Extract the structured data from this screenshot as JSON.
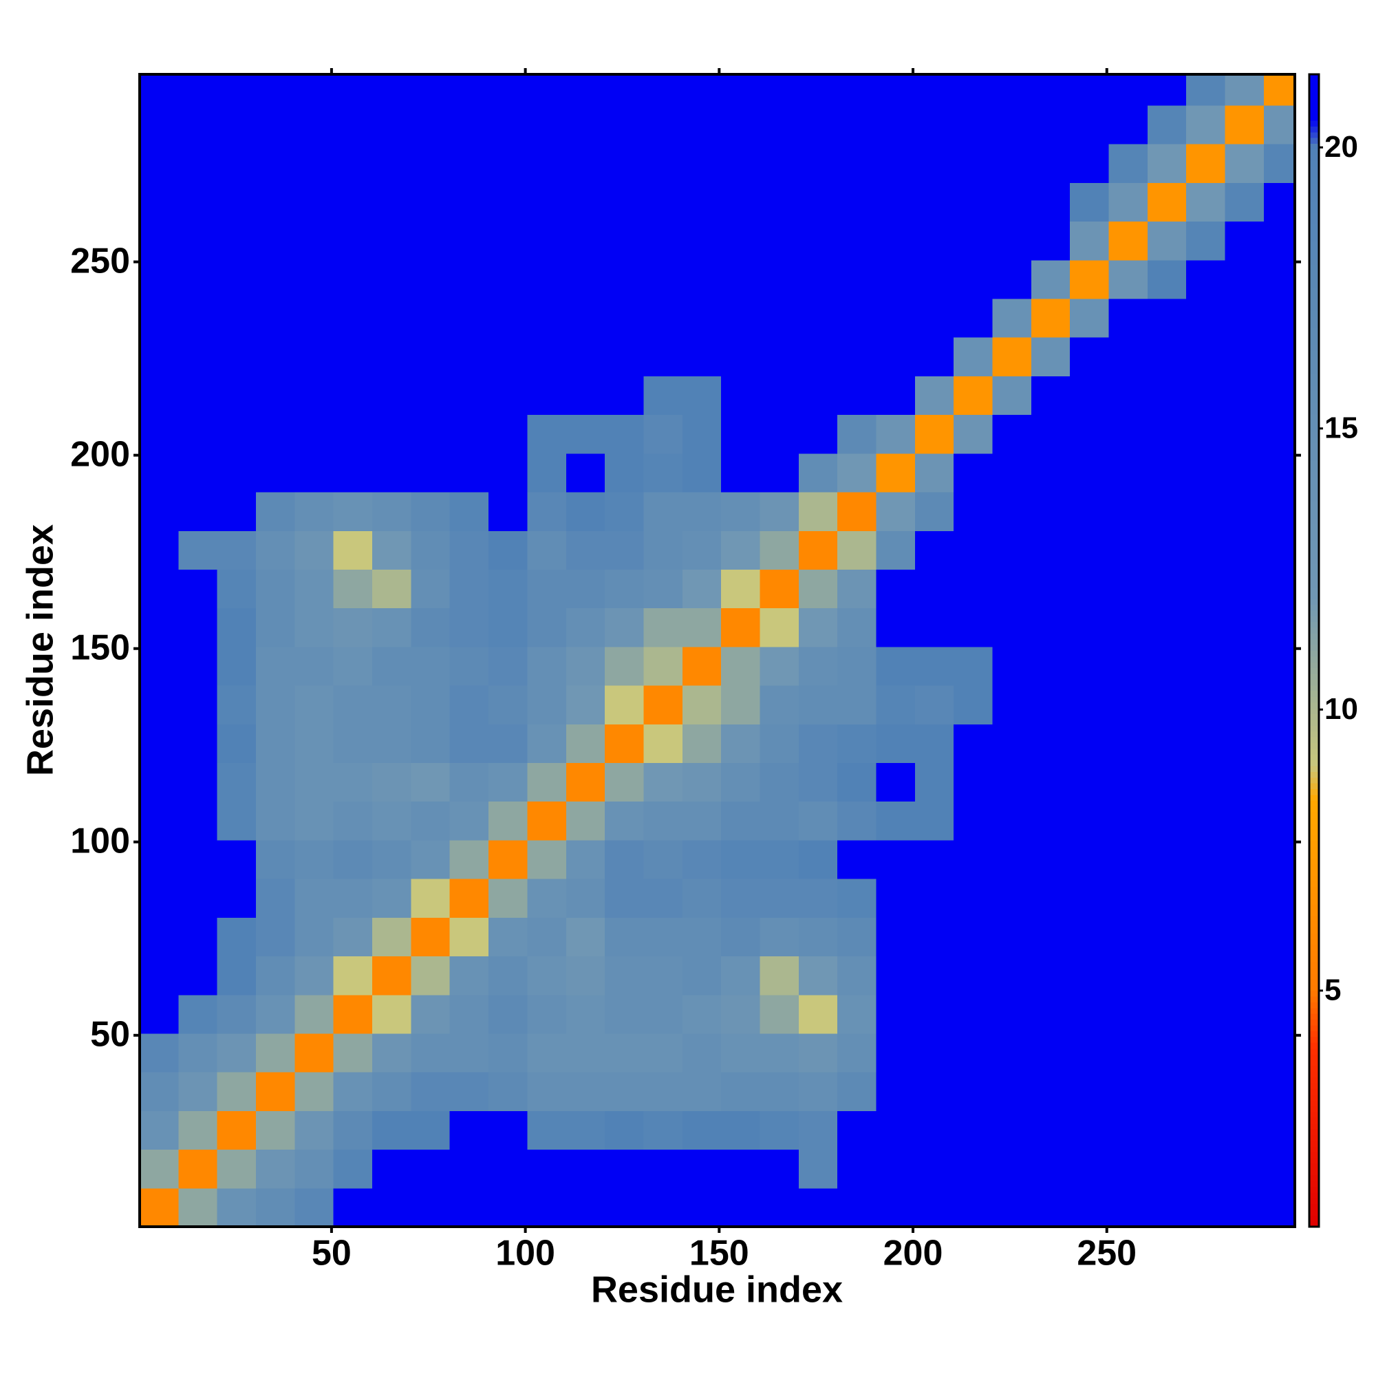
{
  "chart_data": {
    "type": "heatmap",
    "xlabel": "Residue index",
    "ylabel": "Residue index",
    "xlim": [
      0.5,
      298.5
    ],
    "ylim": [
      0.5,
      298.5
    ],
    "xticks": [
      50,
      100,
      150,
      200,
      250
    ],
    "yticks": [
      50,
      100,
      150,
      200,
      250
    ],
    "xbins": [
      0.5,
      10.5,
      20.5,
      30.5,
      40.5,
      50.5,
      60.5,
      70.5,
      80.5,
      90.5,
      100.5,
      110.5,
      120.5,
      130.5,
      140.5,
      150.5,
      160.5,
      170.5,
      180.5,
      190.5,
      200.5,
      210.5,
      220.5,
      230.5,
      240.5,
      250.5,
      260.5,
      270.5,
      280.5,
      290.5,
      298.5
    ],
    "ybins": [
      0.5,
      10.5,
      20.5,
      30.5,
      40.5,
      50.5,
      60.5,
      70.5,
      80.5,
      90.5,
      100.5,
      110.5,
      120.5,
      130.5,
      140.5,
      150.5,
      160.5,
      170.5,
      180.5,
      190.5,
      200.5,
      210.5,
      220.5,
      230.5,
      240.5,
      250.5,
      260.5,
      270.5,
      280.5,
      290.5,
      298.5
    ],
    "colorbar": {
      "lim": [
        0.8,
        21.3
      ],
      "ticks": [
        5,
        10,
        15,
        20
      ],
      "stops": [
        {
          "value": 0.8,
          "color": "#e00000"
        },
        {
          "value": 4,
          "color": "#ff3000"
        },
        {
          "value": 5,
          "color": "#ff7a00"
        },
        {
          "value": 8.4,
          "color": "#ffa800"
        },
        {
          "value": 9,
          "color": "#c9c77c"
        },
        {
          "value": 12,
          "color": "#7097b4"
        },
        {
          "value": 20,
          "color": "#5182b6"
        },
        {
          "value": 20.5,
          "color": "#0000f5"
        },
        {
          "value": 21.3,
          "color": "#0000f5"
        }
      ]
    },
    "z": [
      [
        6,
        11,
        14,
        16,
        18,
        21,
        21,
        21,
        21,
        21,
        21,
        21,
        21,
        21,
        21,
        21,
        21,
        21,
        21,
        21,
        21,
        21,
        21,
        21,
        21,
        21,
        21,
        21,
        21,
        21
      ],
      [
        11,
        6,
        11,
        13,
        15,
        19,
        21,
        21,
        21,
        21,
        21,
        21,
        21,
        21,
        21,
        21,
        21,
        18,
        21,
        21,
        21,
        21,
        21,
        21,
        21,
        21,
        21,
        21,
        21,
        21
      ],
      [
        14,
        11,
        6,
        11,
        13,
        17,
        20,
        20,
        21,
        21,
        19,
        19,
        20,
        19,
        20,
        20,
        19,
        18,
        21,
        21,
        21,
        21,
        21,
        21,
        21,
        21,
        21,
        21,
        21,
        21
      ],
      [
        16,
        13,
        11,
        6,
        11,
        14,
        16,
        18,
        18,
        17,
        15,
        15,
        15,
        15,
        15,
        16,
        16,
        15,
        17,
        21,
        21,
        21,
        21,
        21,
        21,
        21,
        21,
        21,
        21,
        21
      ],
      [
        18,
        15,
        13,
        11,
        6,
        11,
        13,
        15,
        15,
        16,
        14,
        14,
        14,
        14,
        15,
        14,
        14,
        13,
        15,
        21,
        21,
        21,
        21,
        21,
        21,
        21,
        21,
        21,
        21,
        21
      ],
      [
        21,
        19,
        17,
        14,
        11,
        6,
        9,
        13,
        15,
        17,
        15,
        14,
        15,
        15,
        14,
        13,
        11,
        9,
        14,
        21,
        21,
        21,
        21,
        21,
        21,
        21,
        21,
        21,
        21,
        21
      ],
      [
        21,
        21,
        20,
        16,
        13,
        9,
        6,
        10,
        14,
        16,
        14,
        13,
        15,
        15,
        16,
        14,
        10,
        12,
        15,
        21,
        21,
        21,
        21,
        21,
        21,
        21,
        21,
        21,
        21,
        21
      ],
      [
        21,
        21,
        20,
        18,
        15,
        13,
        10,
        6,
        9,
        14,
        15,
        12,
        16,
        16,
        16,
        17,
        15,
        16,
        17,
        21,
        21,
        21,
        21,
        21,
        21,
        21,
        21,
        21,
        21,
        21
      ],
      [
        21,
        21,
        21,
        18,
        15,
        15,
        14,
        9,
        6,
        11,
        14,
        15,
        18,
        18,
        17,
        18,
        18,
        18,
        19,
        21,
        21,
        21,
        21,
        21,
        21,
        21,
        21,
        21,
        21,
        21
      ],
      [
        21,
        21,
        21,
        17,
        16,
        17,
        16,
        14,
        11,
        6,
        11,
        14,
        18,
        17,
        18,
        19,
        19,
        20,
        21,
        21,
        21,
        21,
        21,
        21,
        21,
        21,
        21,
        21,
        21,
        21
      ],
      [
        21,
        21,
        19,
        15,
        14,
        15,
        14,
        15,
        14,
        11,
        6,
        11,
        14,
        15,
        15,
        17,
        17,
        16,
        18,
        20,
        20,
        21,
        21,
        21,
        21,
        21,
        21,
        21,
        21,
        21
      ],
      [
        21,
        21,
        19,
        15,
        14,
        14,
        13,
        12,
        15,
        14,
        11,
        6,
        11,
        12,
        13,
        15,
        17,
        18,
        20,
        21,
        20,
        21,
        21,
        21,
        21,
        21,
        21,
        21,
        21,
        21
      ],
      [
        21,
        21,
        20,
        15,
        14,
        15,
        15,
        16,
        18,
        18,
        14,
        11,
        6,
        9,
        11,
        13,
        16,
        18,
        19,
        20,
        20,
        21,
        21,
        21,
        21,
        21,
        21,
        21,
        21,
        21
      ],
      [
        21,
        21,
        19,
        15,
        14,
        15,
        15,
        16,
        18,
        17,
        15,
        12,
        9,
        6,
        10,
        11,
        15,
        16,
        16,
        19,
        18,
        20,
        21,
        21,
        21,
        21,
        21,
        21,
        21,
        21
      ],
      [
        21,
        21,
        20,
        15,
        15,
        14,
        16,
        16,
        17,
        18,
        15,
        13,
        11,
        10,
        6,
        11,
        12,
        15,
        16,
        20,
        20,
        20,
        21,
        21,
        21,
        21,
        21,
        21,
        21,
        21
      ],
      [
        21,
        21,
        20,
        16,
        14,
        13,
        14,
        17,
        18,
        19,
        17,
        15,
        13,
        11,
        11,
        6,
        9,
        12,
        15,
        21,
        21,
        21,
        21,
        21,
        21,
        21,
        21,
        21,
        21,
        21
      ],
      [
        21,
        21,
        19,
        16,
        14,
        11,
        10,
        15,
        18,
        19,
        17,
        17,
        16,
        15,
        12,
        9,
        6,
        11,
        13,
        21,
        21,
        21,
        21,
        21,
        21,
        21,
        21,
        21,
        21,
        21
      ],
      [
        21,
        18,
        18,
        15,
        13,
        9,
        12,
        16,
        18,
        20,
        16,
        18,
        18,
        16,
        15,
        12,
        11,
        6,
        10,
        16,
        21,
        21,
        21,
        21,
        21,
        21,
        21,
        21,
        21,
        21
      ],
      [
        21,
        21,
        21,
        17,
        15,
        14,
        15,
        17,
        19,
        21,
        18,
        20,
        19,
        16,
        16,
        15,
        13,
        10,
        6,
        12,
        17,
        21,
        21,
        21,
        21,
        21,
        21,
        21,
        21,
        21
      ],
      [
        21,
        21,
        21,
        21,
        21,
        21,
        21,
        21,
        21,
        21,
        20,
        21,
        20,
        19,
        20,
        21,
        21,
        16,
        12,
        7,
        13,
        21,
        21,
        21,
        21,
        21,
        21,
        21,
        21,
        21
      ],
      [
        21,
        21,
        21,
        21,
        21,
        21,
        21,
        21,
        21,
        21,
        20,
        20,
        20,
        18,
        20,
        21,
        21,
        21,
        17,
        13,
        7,
        13,
        21,
        21,
        21,
        21,
        21,
        21,
        21,
        21
      ],
      [
        21,
        21,
        21,
        21,
        21,
        21,
        21,
        21,
        21,
        21,
        21,
        21,
        21,
        20,
        20,
        21,
        21,
        21,
        21,
        21,
        13,
        7,
        14,
        21,
        21,
        21,
        21,
        21,
        21,
        21
      ],
      [
        21,
        21,
        21,
        21,
        21,
        21,
        21,
        21,
        21,
        21,
        21,
        21,
        21,
        21,
        21,
        21,
        21,
        21,
        21,
        21,
        21,
        14,
        7,
        14,
        21,
        21,
        21,
        21,
        21,
        21
      ],
      [
        21,
        21,
        21,
        21,
        21,
        21,
        21,
        21,
        21,
        21,
        21,
        21,
        21,
        21,
        21,
        21,
        21,
        21,
        21,
        21,
        21,
        21,
        14,
        7,
        14,
        21,
        21,
        21,
        21,
        21
      ],
      [
        21,
        21,
        21,
        21,
        21,
        21,
        21,
        21,
        21,
        21,
        21,
        21,
        21,
        21,
        21,
        21,
        21,
        21,
        21,
        21,
        21,
        21,
        21,
        14,
        7,
        13,
        20,
        21,
        21,
        21
      ],
      [
        21,
        21,
        21,
        21,
        21,
        21,
        21,
        21,
        21,
        21,
        21,
        21,
        21,
        21,
        21,
        21,
        21,
        21,
        21,
        21,
        21,
        21,
        21,
        21,
        13,
        7,
        13,
        19,
        21,
        21
      ],
      [
        21,
        21,
        21,
        21,
        21,
        21,
        21,
        21,
        21,
        21,
        21,
        21,
        21,
        21,
        21,
        21,
        21,
        21,
        21,
        21,
        21,
        21,
        21,
        21,
        20,
        13,
        7,
        12,
        19,
        21
      ],
      [
        21,
        21,
        21,
        21,
        21,
        21,
        21,
        21,
        21,
        21,
        21,
        21,
        21,
        21,
        21,
        21,
        21,
        21,
        21,
        21,
        21,
        21,
        21,
        21,
        21,
        19,
        12,
        7,
        12,
        19
      ],
      [
        21,
        21,
        21,
        21,
        21,
        21,
        21,
        21,
        21,
        21,
        21,
        21,
        21,
        21,
        21,
        21,
        21,
        21,
        21,
        21,
        21,
        21,
        21,
        21,
        21,
        21,
        19,
        12,
        7,
        13
      ],
      [
        21,
        21,
        21,
        21,
        21,
        21,
        21,
        21,
        21,
        21,
        21,
        21,
        21,
        21,
        21,
        21,
        21,
        21,
        21,
        21,
        21,
        21,
        21,
        21,
        21,
        21,
        21,
        19,
        13,
        7
      ]
    ]
  }
}
